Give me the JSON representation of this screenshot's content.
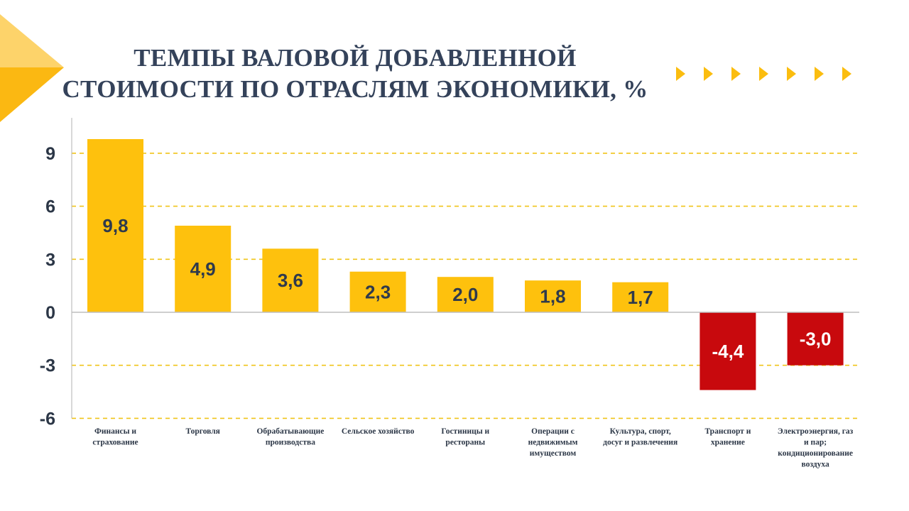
{
  "colors": {
    "positive_bar": "#fec10d",
    "negative_bar": "#c8090d",
    "positive_label": "#2f3a4c",
    "negative_label": "#ffffff",
    "gridline": "#f0c419",
    "axis": "#bdbdbd",
    "title": "#34425a",
    "accent_arrows": "#fbbd0f"
  },
  "icons": {
    "corner": "corner-triangle-icon",
    "arrows": "chevron-right-icon"
  },
  "chart_data": {
    "type": "bar",
    "title_lines": [
      "ТЕМПЫ ВАЛОВОЙ ДОБАВЛЕННОЙ",
      "СТОИМОСТИ ПО ОТРАСЛЯМ ЭКОНОМИКИ, %"
    ],
    "categories": [
      [
        "Финансы и",
        "страхование"
      ],
      [
        "Торговля"
      ],
      [
        "Обрабатывающие",
        "производства"
      ],
      [
        "Сельское хозяйство"
      ],
      [
        "Гостиницы и",
        "рестораны"
      ],
      [
        "Операции с",
        "недвижимым",
        "имуществом"
      ],
      [
        "Культура, спорт,",
        "досуг и развлечения"
      ],
      [
        "Транспорт и",
        "хранение"
      ],
      [
        "Электроэнергия, газ",
        "и пар;",
        "кондиционирование",
        "воздуха"
      ]
    ],
    "values": [
      9.8,
      4.9,
      3.6,
      2.3,
      2.0,
      1.8,
      1.7,
      -4.4,
      -3.0
    ],
    "value_labels": [
      "9,8",
      "4,9",
      "3,6",
      "2,3",
      "2,0",
      "1,8",
      "1,7",
      "-4,4",
      "-3,0"
    ],
    "yticks": [
      9,
      6,
      3,
      0,
      -3,
      -6
    ],
    "ytick_labels": [
      "9",
      "6",
      "3",
      "0",
      "-3",
      "-6"
    ],
    "ylim": [
      -6,
      11
    ],
    "grid": true,
    "xlabel": "",
    "ylabel": ""
  }
}
